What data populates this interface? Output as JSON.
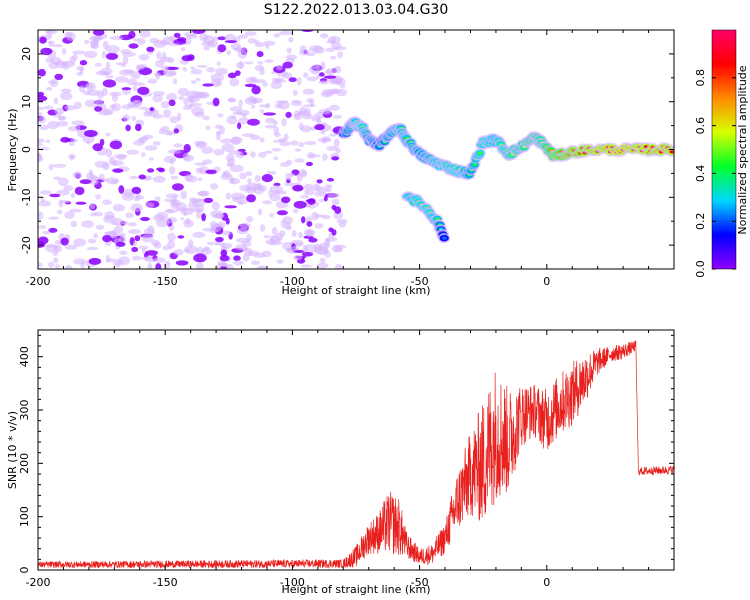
{
  "title": "S122.2022.013.03.04.G30",
  "colors": {
    "purple": "#8a00ff",
    "purple_light": "#d6b3ff",
    "snr_line": "#e8201e",
    "axis": "#000000",
    "colorbar": [
      "#8f00ff",
      "#0000ff",
      "#00d7ff",
      "#00ff2a",
      "#d7ff00",
      "#ff8a00",
      "#ff0000",
      "#ff0066"
    ]
  },
  "chart_data": [
    {
      "type": "heatmap",
      "name": "spectrogram",
      "xlabel": "Height of straight line (km)",
      "ylabel": "Frequency (Hz)",
      "xlim": [
        -200,
        50
      ],
      "ylim": [
        -25,
        25
      ],
      "xticks": [
        "-200",
        "-150",
        "-100",
        "-50",
        "0"
      ],
      "xtick_values": [
        -200,
        -150,
        -100,
        -50,
        0
      ],
      "yticks": [
        "20",
        "10",
        "0",
        "-10",
        "-20"
      ],
      "ytick_values": [
        20,
        10,
        0,
        -10,
        -20
      ],
      "noise_region": {
        "x_range": [
          -200,
          -80
        ],
        "y_range": [
          -25,
          25
        ],
        "amplitude": 0.15
      },
      "signal_track": [
        {
          "x": -80,
          "y": 3,
          "amp": 0.3
        },
        {
          "x": -76,
          "y": 5.5,
          "amp": 0.45
        },
        {
          "x": -73,
          "y": 5,
          "amp": 0.5
        },
        {
          "x": -70,
          "y": 2,
          "amp": 0.4
        },
        {
          "x": -66,
          "y": 1,
          "amp": 0.35
        },
        {
          "x": -62,
          "y": 3,
          "amp": 0.4
        },
        {
          "x": -58,
          "y": 4.5,
          "amp": 0.45
        },
        {
          "x": -55,
          "y": 2,
          "amp": 0.45
        },
        {
          "x": -50,
          "y": -1,
          "amp": 0.4
        },
        {
          "x": -45,
          "y": -2.5,
          "amp": 0.45
        },
        {
          "x": -40,
          "y": -3.5,
          "amp": 0.5
        },
        {
          "x": -35,
          "y": -4.5,
          "amp": 0.5
        },
        {
          "x": -30,
          "y": -5,
          "amp": 0.4
        },
        {
          "x": -25,
          "y": 1.5,
          "amp": 0.5
        },
        {
          "x": -20,
          "y": 2,
          "amp": 0.45
        },
        {
          "x": -15,
          "y": -1,
          "amp": 0.55
        },
        {
          "x": -10,
          "y": 0.5,
          "amp": 0.55
        },
        {
          "x": -5,
          "y": 2.5,
          "amp": 0.6
        },
        {
          "x": -2,
          "y": 1.5,
          "amp": 0.55
        },
        {
          "x": 3,
          "y": -1.5,
          "amp": 0.75
        },
        {
          "x": 10,
          "y": -0.5,
          "amp": 0.85
        },
        {
          "x": 20,
          "y": 0,
          "amp": 0.9
        },
        {
          "x": 30,
          "y": 0,
          "amp": 0.92
        },
        {
          "x": 40,
          "y": 0,
          "amp": 0.9
        },
        {
          "x": 50,
          "y": 0,
          "amp": 0.9
        }
      ],
      "secondary_track": [
        {
          "x": -55,
          "y": -9.5,
          "amp": 0.45
        },
        {
          "x": -48,
          "y": -12,
          "amp": 0.5
        },
        {
          "x": -43,
          "y": -15,
          "amp": 0.45
        },
        {
          "x": -40,
          "y": -19,
          "amp": 0.2
        }
      ]
    },
    {
      "type": "colorbar",
      "label": "Normalized spectral amplitude",
      "range": [
        0.0,
        1.0
      ],
      "ticks": [
        "0.0",
        "0.2",
        "0.4",
        "0.6",
        "0.8"
      ],
      "tick_values": [
        0.0,
        0.2,
        0.4,
        0.6,
        0.8
      ]
    },
    {
      "type": "line",
      "name": "snr",
      "xlabel": "Height of straight line (km)",
      "ylabel": "SNR (10 * v/v)",
      "xlim": [
        -200,
        50
      ],
      "ylim": [
        0,
        450
      ],
      "xticks": [
        "-200",
        "-150",
        "-100",
        "-50",
        "0"
      ],
      "xtick_values": [
        -200,
        -150,
        -100,
        -50,
        0
      ],
      "yticks": [
        "0",
        "100",
        "200",
        "300",
        "400"
      ],
      "ytick_values": [
        0,
        100,
        200,
        300,
        400
      ],
      "envelope": [
        {
          "x": -200,
          "y": 10,
          "spread": 6
        },
        {
          "x": -80,
          "y": 12,
          "spread": 8
        },
        {
          "x": -75,
          "y": 25,
          "spread": 20
        },
        {
          "x": -70,
          "y": 60,
          "spread": 30
        },
        {
          "x": -66,
          "y": 70,
          "spread": 40
        },
        {
          "x": -62,
          "y": 90,
          "spread": 60
        },
        {
          "x": -58,
          "y": 80,
          "spread": 55
        },
        {
          "x": -55,
          "y": 45,
          "spread": 25
        },
        {
          "x": -50,
          "y": 25,
          "spread": 15
        },
        {
          "x": -45,
          "y": 30,
          "spread": 20
        },
        {
          "x": -40,
          "y": 60,
          "spread": 30
        },
        {
          "x": -35,
          "y": 130,
          "spread": 60
        },
        {
          "x": -30,
          "y": 180,
          "spread": 80
        },
        {
          "x": -25,
          "y": 200,
          "spread": 120
        },
        {
          "x": -20,
          "y": 260,
          "spread": 130
        },
        {
          "x": -15,
          "y": 240,
          "spread": 100
        },
        {
          "x": -10,
          "y": 290,
          "spread": 60
        },
        {
          "x": -5,
          "y": 300,
          "spread": 50
        },
        {
          "x": 0,
          "y": 280,
          "spread": 60
        },
        {
          "x": 5,
          "y": 310,
          "spread": 60
        },
        {
          "x": 10,
          "y": 330,
          "spread": 60
        },
        {
          "x": 15,
          "y": 360,
          "spread": 50
        },
        {
          "x": 20,
          "y": 390,
          "spread": 25
        },
        {
          "x": 25,
          "y": 405,
          "spread": 15
        },
        {
          "x": 30,
          "y": 410,
          "spread": 15
        },
        {
          "x": 35,
          "y": 420,
          "spread": 10
        },
        {
          "x": 36,
          "y": 185,
          "spread": 8
        },
        {
          "x": 50,
          "y": 188,
          "spread": 8
        }
      ]
    }
  ]
}
